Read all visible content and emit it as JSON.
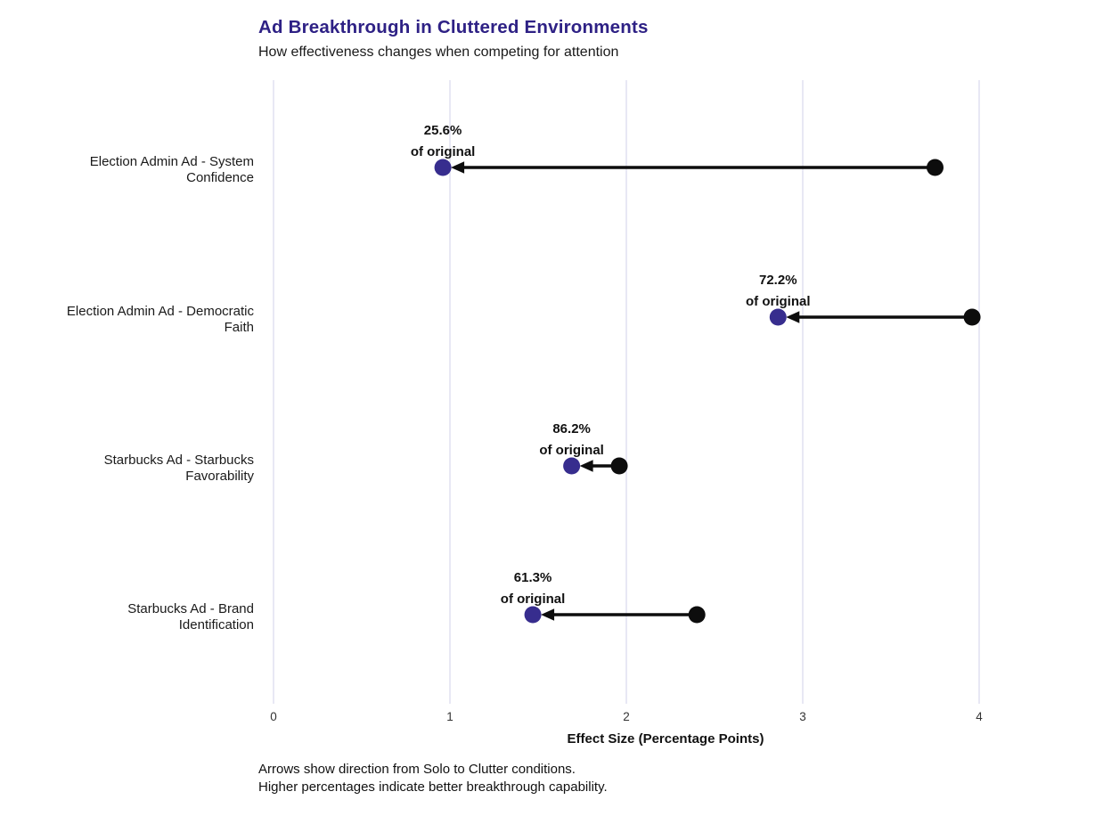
{
  "chart": {
    "title": "Ad Breakthrough in Cluttered Environments",
    "subtitle": "How effectiveness changes when competing for attention",
    "footnote_line1": "Arrows show direction from Solo to Clutter conditions.",
    "footnote_line2": "Higher percentages indicate better breakthrough capability."
  },
  "chart_data": {
    "type": "dumbbell-arrow",
    "title": "Ad Breakthrough in Cluttered Environments",
    "subtitle": "How effectiveness changes when competing for attention",
    "xlabel": "Effect Size (Percentage Points)",
    "ylabel": "",
    "xlim": [
      0,
      4.45
    ],
    "x_ticks": [
      0,
      1,
      2,
      3,
      4
    ],
    "grid": "vertical-only",
    "legend_position": "none",
    "arrow_direction": "solo-to-clutter",
    "annotation_suffix": "of original",
    "categories": [
      "Election Admin Ad - System Confidence",
      "Election Admin Ad - Democratic Faith",
      "Starbucks Ad - Starbucks Favorability",
      "Starbucks Ad - Brand Identification"
    ],
    "rows": [
      {
        "category_line1": "Election Admin Ad - System",
        "category_line2": "Confidence",
        "solo": 3.75,
        "clutter": 0.96,
        "pct_label": "25.6%"
      },
      {
        "category_line1": "Election Admin Ad - Democratic",
        "category_line2": "Faith",
        "solo": 3.96,
        "clutter": 2.86,
        "pct_label": "72.2%"
      },
      {
        "category_line1": "Starbucks Ad - Starbucks",
        "category_line2": "Favorability",
        "solo": 1.96,
        "clutter": 1.69,
        "pct_label": "86.2%"
      },
      {
        "category_line1": "Starbucks Ad - Brand",
        "category_line2": "Identification",
        "solo": 2.4,
        "clutter": 1.47,
        "pct_label": "61.3%"
      }
    ],
    "series": [
      {
        "name": "Solo",
        "values": [
          3.75,
          3.96,
          1.96,
          2.4
        ]
      },
      {
        "name": "Clutter",
        "values": [
          0.96,
          2.86,
          1.69,
          1.47
        ]
      }
    ],
    "colors": {
      "title": "#2e2185",
      "clutter_dot": "#372d8e",
      "solo_dot": "#0d0d0d",
      "arrow": "#0d0d0d",
      "gridline": "#dcdcef",
      "tick_label": "#333333",
      "category_label": "#1a1a1a",
      "annotation": "#111111"
    }
  }
}
